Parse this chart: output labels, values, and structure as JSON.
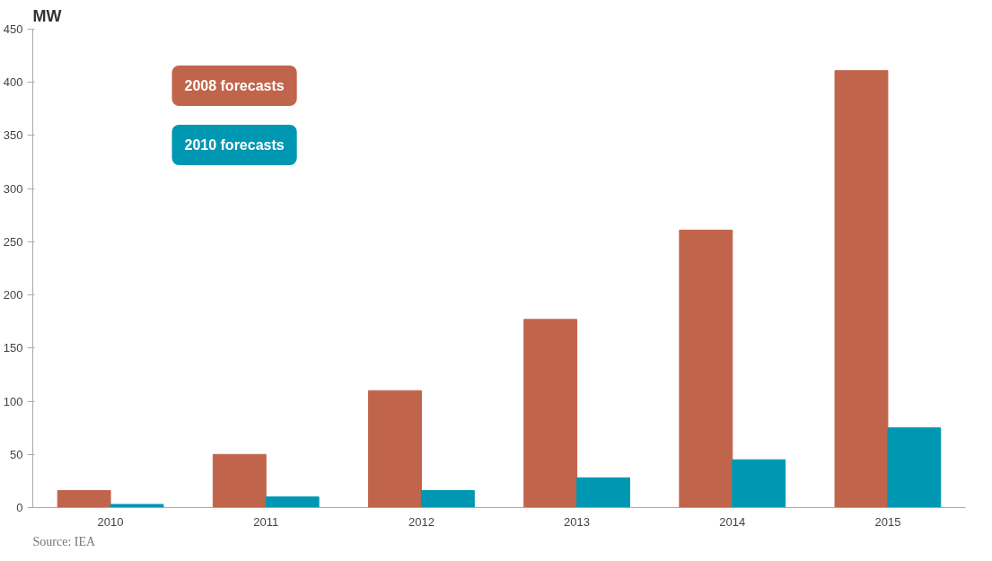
{
  "chart_data": {
    "type": "bar",
    "ylabel": "MW",
    "categories": [
      "2010",
      "2011",
      "2012",
      "2013",
      "2014",
      "2015"
    ],
    "series": [
      {
        "name": "2008 forecasts",
        "color": "#c0654b",
        "values": [
          16,
          50,
          110,
          177,
          261,
          411
        ]
      },
      {
        "name": "2010 forecasts",
        "color": "#0097b2",
        "values": [
          3,
          10,
          16,
          28,
          45,
          75
        ]
      }
    ],
    "ylim": [
      0,
      450
    ],
    "yticks": [
      0,
      50,
      100,
      150,
      200,
      250,
      300,
      350,
      400,
      450
    ],
    "grid": false,
    "legend": "top left",
    "annotations": [
      "Source: IEA"
    ]
  }
}
